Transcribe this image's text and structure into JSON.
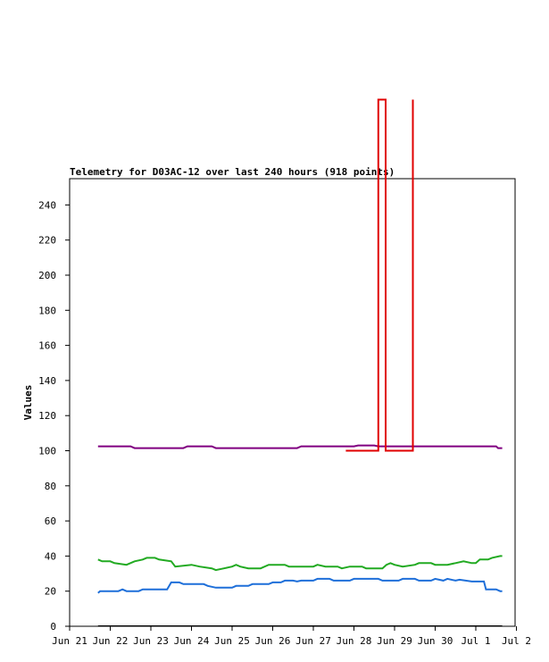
{
  "chart_data": {
    "type": "line",
    "title": "Telemetry for D03AC-12 over last 240 hours (918 points)",
    "xlabel": "",
    "ylabel": "Values",
    "ylim": [
      0,
      255
    ],
    "y_ticks": [
      0,
      20,
      40,
      60,
      80,
      100,
      120,
      140,
      160,
      180,
      200,
      220,
      240
    ],
    "x_ticks": [
      {
        "label": "Jun 21",
        "day": 0
      },
      {
        "label": "Jun 22",
        "day": 1
      },
      {
        "label": "Jun 23",
        "day": 2
      },
      {
        "label": "Jun 24",
        "day": 3
      },
      {
        "label": "Jun 25",
        "day": 4
      },
      {
        "label": "Jun 26",
        "day": 5
      },
      {
        "label": "Jun 27",
        "day": 6
      },
      {
        "label": "Jun 28",
        "day": 7
      },
      {
        "label": "Jun 29",
        "day": 8
      },
      {
        "label": "Jun 30",
        "day": 9
      },
      {
        "label": "Jul 1",
        "day": 10
      },
      {
        "label": "Jul 2",
        "day": 11
      }
    ],
    "xlim_days": [
      0,
      11
    ],
    "grid": false,
    "series": [
      {
        "color": "#800080",
        "points": [
          [
            0.7,
            102.5
          ],
          [
            1.5,
            102.5
          ],
          [
            1.6,
            101.5
          ],
          [
            2.8,
            101.5
          ],
          [
            2.9,
            102.5
          ],
          [
            3.5,
            102.5
          ],
          [
            3.6,
            101.5
          ],
          [
            5.6,
            101.5
          ],
          [
            5.7,
            102.5
          ],
          [
            7.0,
            102.5
          ],
          [
            7.1,
            103
          ],
          [
            7.5,
            103
          ],
          [
            7.6,
            102.5
          ],
          [
            10.5,
            102.5
          ],
          [
            10.55,
            101.5
          ],
          [
            10.65,
            101.5
          ]
        ]
      },
      {
        "color": "#e00000",
        "points": [
          [
            6.8,
            100
          ],
          [
            7.6,
            100
          ],
          [
            7.6,
            300
          ],
          [
            7.78,
            300
          ],
          [
            7.78,
            100
          ],
          [
            8.45,
            100
          ],
          [
            8.45,
            300
          ]
        ]
      },
      {
        "color": "#22aa22",
        "points": [
          [
            0.7,
            38
          ],
          [
            0.8,
            37
          ],
          [
            1.0,
            37
          ],
          [
            1.1,
            36
          ],
          [
            1.4,
            35
          ],
          [
            1.6,
            37
          ],
          [
            1.8,
            38
          ],
          [
            1.9,
            39
          ],
          [
            2.1,
            39
          ],
          [
            2.2,
            38
          ],
          [
            2.5,
            37
          ],
          [
            2.6,
            34
          ],
          [
            3.0,
            35
          ],
          [
            3.2,
            34
          ],
          [
            3.5,
            33
          ],
          [
            3.6,
            32
          ],
          [
            3.8,
            33
          ],
          [
            4.0,
            34
          ],
          [
            4.1,
            35
          ],
          [
            4.2,
            34
          ],
          [
            4.4,
            33
          ],
          [
            4.7,
            33
          ],
          [
            4.9,
            35
          ],
          [
            5.3,
            35
          ],
          [
            5.4,
            34
          ],
          [
            6.0,
            34
          ],
          [
            6.1,
            35
          ],
          [
            6.3,
            34
          ],
          [
            6.6,
            34
          ],
          [
            6.7,
            33
          ],
          [
            6.9,
            34
          ],
          [
            7.2,
            34
          ],
          [
            7.3,
            33
          ],
          [
            7.7,
            33
          ],
          [
            7.8,
            35
          ],
          [
            7.9,
            36
          ],
          [
            8.0,
            35
          ],
          [
            8.2,
            34
          ],
          [
            8.5,
            35
          ],
          [
            8.6,
            36
          ],
          [
            8.9,
            36
          ],
          [
            9.0,
            35
          ],
          [
            9.3,
            35
          ],
          [
            9.5,
            36
          ],
          [
            9.7,
            37
          ],
          [
            9.9,
            36
          ],
          [
            10.0,
            36
          ],
          [
            10.1,
            38
          ],
          [
            10.3,
            38
          ],
          [
            10.4,
            39
          ],
          [
            10.6,
            40
          ],
          [
            10.65,
            40
          ]
        ]
      },
      {
        "color": "#1e6fd9",
        "points": [
          [
            0.7,
            19
          ],
          [
            0.75,
            20
          ],
          [
            1.2,
            20
          ],
          [
            1.3,
            21
          ],
          [
            1.4,
            20
          ],
          [
            1.7,
            20
          ],
          [
            1.8,
            21
          ],
          [
            2.4,
            21
          ],
          [
            2.5,
            25
          ],
          [
            2.7,
            25
          ],
          [
            2.8,
            24
          ],
          [
            3.3,
            24
          ],
          [
            3.4,
            23
          ],
          [
            3.6,
            22
          ],
          [
            4.0,
            22
          ],
          [
            4.1,
            23
          ],
          [
            4.4,
            23
          ],
          [
            4.5,
            24
          ],
          [
            4.9,
            24
          ],
          [
            5.0,
            25
          ],
          [
            5.2,
            25
          ],
          [
            5.3,
            26
          ],
          [
            5.5,
            26
          ],
          [
            5.6,
            25.5
          ],
          [
            5.7,
            26
          ],
          [
            6.0,
            26
          ],
          [
            6.1,
            27
          ],
          [
            6.4,
            27
          ],
          [
            6.5,
            26
          ],
          [
            6.9,
            26
          ],
          [
            7.0,
            27
          ],
          [
            7.6,
            27
          ],
          [
            7.7,
            26
          ],
          [
            8.1,
            26
          ],
          [
            8.2,
            27
          ],
          [
            8.5,
            27
          ],
          [
            8.6,
            26
          ],
          [
            8.9,
            26
          ],
          [
            9.0,
            27
          ],
          [
            9.2,
            26
          ],
          [
            9.3,
            27
          ],
          [
            9.5,
            26
          ],
          [
            9.6,
            26.5
          ],
          [
            9.9,
            25.5
          ],
          [
            10.2,
            25.5
          ],
          [
            10.25,
            21
          ],
          [
            10.5,
            21
          ],
          [
            10.6,
            20
          ],
          [
            10.65,
            20
          ]
        ]
      },
      {
        "color": "#000000",
        "points": [
          [
            0.7,
            0
          ],
          [
            10.65,
            0
          ]
        ]
      }
    ]
  }
}
